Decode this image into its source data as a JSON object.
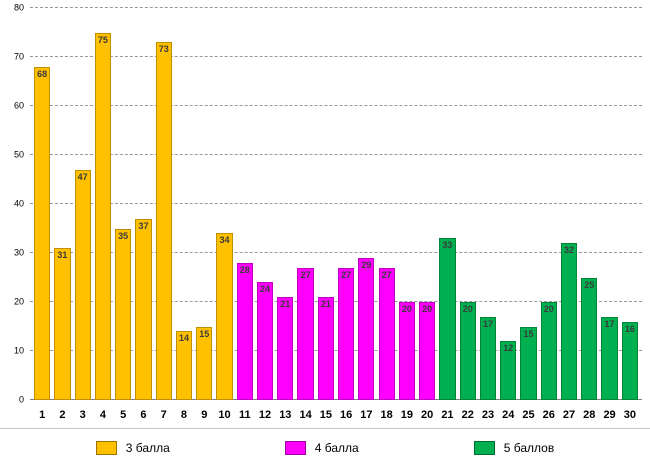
{
  "chart_data": {
    "type": "bar",
    "title": "",
    "xlabel": "",
    "ylabel": "",
    "categories": [
      "1",
      "2",
      "3",
      "4",
      "5",
      "6",
      "7",
      "8",
      "9",
      "10",
      "11",
      "12",
      "13",
      "14",
      "15",
      "16",
      "17",
      "18",
      "19",
      "20",
      "21",
      "22",
      "23",
      "24",
      "25",
      "26",
      "27",
      "28",
      "29",
      "30"
    ],
    "values": [
      68,
      31,
      47,
      75,
      35,
      37,
      73,
      14,
      15,
      34,
      28,
      24,
      21,
      27,
      21,
      27,
      29,
      27,
      20,
      20,
      33,
      20,
      17,
      12,
      15,
      20,
      32,
      25,
      17,
      16
    ],
    "series": [
      {
        "name": "3 балла",
        "color": "#FFC000",
        "border": "#BF9000",
        "range": [
          1,
          10
        ]
      },
      {
        "name": "4 балла",
        "color": "#FF00FF",
        "border": "#BF00BF",
        "range": [
          11,
          20
        ]
      },
      {
        "name": "5 баллов",
        "color": "#00B050",
        "border": "#008538",
        "range": [
          21,
          30
        ]
      }
    ],
    "ylim": [
      0,
      80
    ],
    "ytick_step": 10,
    "grid": "dashed-horizontal",
    "legend_position": "bottom",
    "bar_labels": "inside-top"
  }
}
